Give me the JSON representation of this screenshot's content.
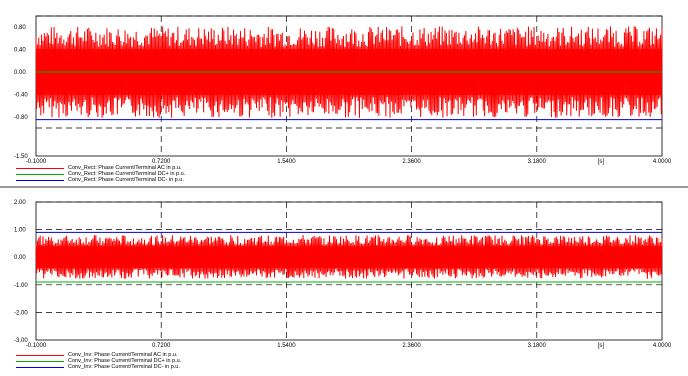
{
  "colors": {
    "ac": "#ff0000",
    "dc_plus": "#00b000",
    "dc_minus": "#0000dd",
    "grid": "#000000"
  },
  "chart_data": [
    {
      "type": "line",
      "title": "",
      "xlabel": "",
      "ylabel": "",
      "x_unit": "[s]",
      "xlim": [
        -0.1,
        4.0
      ],
      "ylim": [
        -1.5,
        1.0
      ],
      "x_ticks": [
        "-0.1000",
        "0.7200",
        "1.5400",
        "2.3600",
        "3.1800",
        "[s]",
        "4.0000"
      ],
      "x_tick_values": [
        -0.1,
        0.72,
        1.54,
        2.36,
        3.18,
        3.6,
        4.0
      ],
      "y_ticks": [
        "0.80",
        "0.40",
        "0.00",
        "-0.40",
        "-0.80",
        "-1.50"
      ],
      "y_tick_values": [
        0.8,
        0.4,
        0.0,
        -0.4,
        -0.8,
        -1.5
      ],
      "grid": true,
      "dashed_levels": [
        1.0,
        -1.0
      ],
      "series": [
        {
          "name": "Conv_Rect: Phase Current/Terminal AC in p.u.",
          "color": "#ff0000",
          "envelope": [
            -0.82,
            0.82
          ],
          "shape": "dense oscillation"
        },
        {
          "name": "Conv_Rect: Phase Current/Terminal DC+ in p.u.",
          "color": "#00b000",
          "values": [
            0.0,
            0.0
          ]
        },
        {
          "name": "Conv_Rect: Phase Current/Terminal DC- in p.u.",
          "color": "#0000dd",
          "values": [
            -0.85,
            -0.85
          ]
        }
      ]
    },
    {
      "type": "line",
      "title": "",
      "xlabel": "",
      "ylabel": "",
      "x_unit": "[s]",
      "xlim": [
        -0.1,
        4.0
      ],
      "ylim": [
        -3.0,
        2.0
      ],
      "x_ticks": [
        "-0.1000",
        "0.7200",
        "1.5400",
        "2.3600",
        "3.1800",
        "[s]",
        "4.0000"
      ],
      "x_tick_values": [
        -0.1,
        0.72,
        1.54,
        2.36,
        3.18,
        3.6,
        4.0
      ],
      "y_ticks": [
        "2.00",
        "1.00",
        "0.00",
        "-1.00",
        "-2.00",
        "-3.00"
      ],
      "y_tick_values": [
        2.0,
        1.0,
        0.0,
        -1.0,
        -2.0,
        -3.0
      ],
      "grid": true,
      "dashed_levels": [
        2.0,
        1.0,
        -1.0,
        -2.0
      ],
      "series": [
        {
          "name": "Conv_Inv: Phase Current/Terminal AC in p.u.",
          "color": "#ff0000",
          "envelope": [
            -0.78,
            0.8
          ],
          "shape": "dense oscillation"
        },
        {
          "name": "Conv_Inv: Phase Current/Terminal DC+ in p.u.",
          "color": "#00b000",
          "values": [
            -0.9,
            -0.9
          ]
        },
        {
          "name": "Conv_Inv: Phase Current/Terminal DC- in p.u.",
          "color": "#0000dd",
          "values": [
            0.9,
            0.9
          ]
        }
      ]
    }
  ]
}
